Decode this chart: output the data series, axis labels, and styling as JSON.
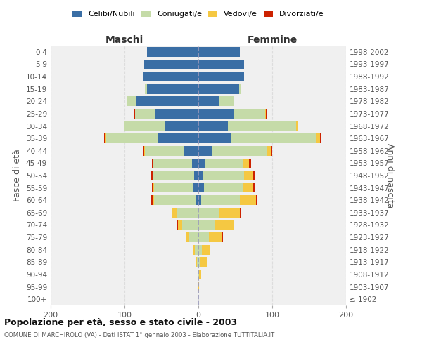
{
  "age_groups": [
    "100+",
    "95-99",
    "90-94",
    "85-89",
    "80-84",
    "75-79",
    "70-74",
    "65-69",
    "60-64",
    "55-59",
    "50-54",
    "45-49",
    "40-44",
    "35-39",
    "30-34",
    "25-29",
    "20-24",
    "15-19",
    "10-14",
    "5-9",
    "0-4"
  ],
  "birth_years": [
    "≤ 1902",
    "1903-1907",
    "1908-1912",
    "1913-1917",
    "1918-1922",
    "1923-1927",
    "1928-1932",
    "1933-1937",
    "1938-1942",
    "1943-1947",
    "1948-1952",
    "1953-1957",
    "1958-1962",
    "1963-1967",
    "1968-1972",
    "1973-1977",
    "1978-1982",
    "1983-1987",
    "1988-1992",
    "1993-1997",
    "1998-2002"
  ],
  "males": {
    "celibi": [
      0,
      0,
      0,
      0,
      0,
      0,
      0,
      0,
      4,
      8,
      6,
      9,
      20,
      55,
      45,
      58,
      85,
      70,
      74,
      73,
      70
    ],
    "coniugati": [
      0,
      0,
      1,
      2,
      5,
      12,
      22,
      30,
      56,
      52,
      55,
      52,
      52,
      70,
      55,
      28,
      12,
      2,
      0,
      0,
      0
    ],
    "vedovi": [
      0,
      0,
      0,
      1,
      3,
      4,
      6,
      5,
      2,
      1,
      1,
      0,
      1,
      1,
      0,
      0,
      0,
      0,
      0,
      0,
      0
    ],
    "divorziati": [
      0,
      0,
      0,
      0,
      0,
      1,
      1,
      1,
      2,
      2,
      2,
      2,
      1,
      2,
      1,
      1,
      0,
      0,
      0,
      0,
      0
    ]
  },
  "females": {
    "nubili": [
      0,
      0,
      0,
      0,
      0,
      0,
      0,
      0,
      4,
      8,
      6,
      9,
      18,
      45,
      40,
      48,
      28,
      55,
      62,
      62,
      56
    ],
    "coniugate": [
      0,
      0,
      1,
      3,
      5,
      14,
      22,
      28,
      52,
      52,
      56,
      52,
      75,
      115,
      92,
      42,
      20,
      3,
      0,
      0,
      0
    ],
    "vedove": [
      0,
      1,
      3,
      8,
      10,
      18,
      26,
      28,
      22,
      14,
      12,
      8,
      5,
      5,
      2,
      1,
      1,
      0,
      0,
      0,
      0
    ],
    "divorziate": [
      0,
      0,
      0,
      0,
      0,
      1,
      1,
      1,
      2,
      2,
      3,
      2,
      2,
      2,
      1,
      1,
      0,
      0,
      0,
      0,
      0
    ]
  },
  "colors": {
    "celibi": "#3a6ea5",
    "coniugati": "#c5dba8",
    "vedovi": "#f5c842",
    "divorziati": "#cc2200"
  },
  "xlim": 200,
  "title": "Popolazione per età, sesso e stato civile - 2003",
  "subtitle": "COMUNE DI MARCHIROLO (VA) - Dati ISTAT 1° gennaio 2003 - Elaborazione TUTTITALIA.IT",
  "ylabel_left": "Fasce di età",
  "ylabel_right": "Anni di nascita",
  "xlabel_left": "Maschi",
  "xlabel_right": "Femmine",
  "bg_color": "#f0f0f0",
  "grid_color": "#dddddd"
}
